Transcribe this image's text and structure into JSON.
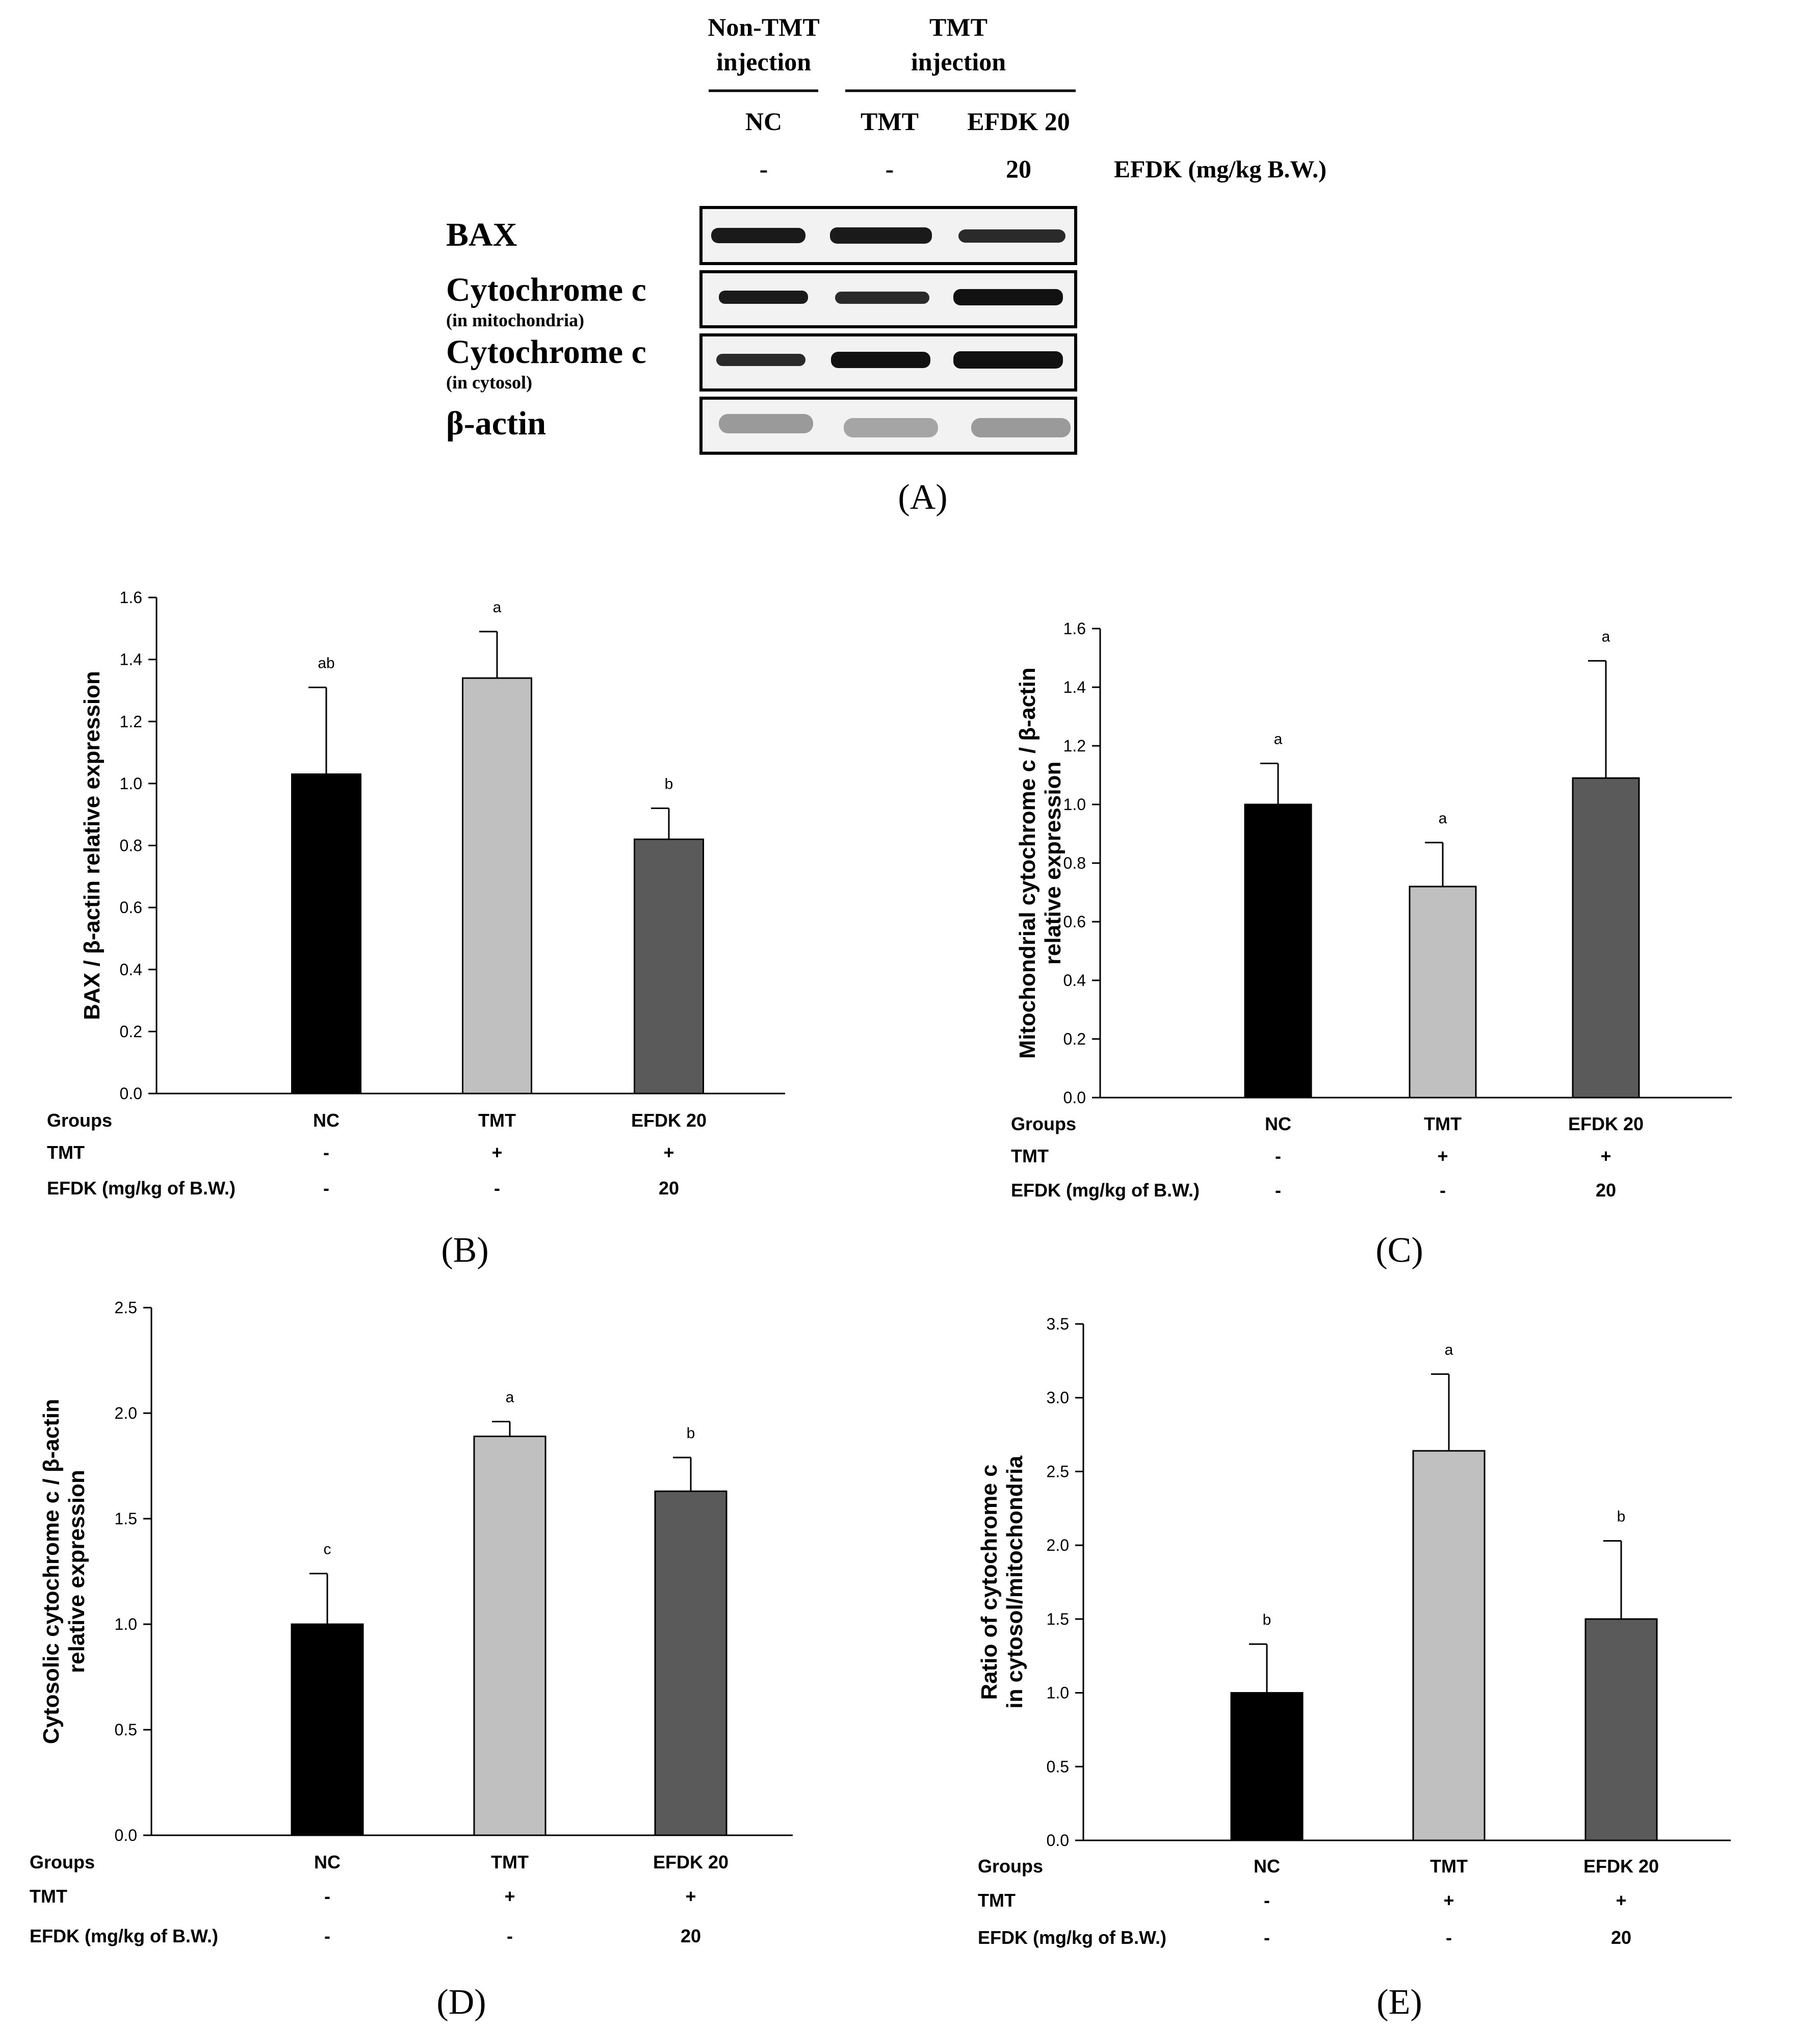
{
  "colors": {
    "nc": "#000000",
    "tmt": "#c0c0c0",
    "efdk": "#5a5a5a",
    "axis": "#000000",
    "blot_bg": "#f2f2f2"
  },
  "western_blot": {
    "panel_label": "(A)",
    "header_groups": [
      {
        "line1": "Non-TMT",
        "line2": "injection"
      },
      {
        "line1": "TMT",
        "line2": "injection"
      }
    ],
    "lanes": [
      "NC",
      "TMT",
      "EFDK 20"
    ],
    "dose_values": [
      "-",
      "-",
      "20"
    ],
    "dose_label": "EFDK (mg/kg B.W.)",
    "rows": [
      {
        "name": "BAX",
        "sub": ""
      },
      {
        "name": "Cytochrome c",
        "sub": "(in mitochondria)"
      },
      {
        "name": "Cytochrome c",
        "sub": "(in cytosol)"
      },
      {
        "name": "β-actin",
        "sub": ""
      }
    ]
  },
  "table_labels": {
    "row_titles": [
      "Groups",
      "TMT",
      "EFDK (mg/kg of B.W.)"
    ],
    "groups": [
      "NC",
      "TMT",
      "EFDK 20"
    ],
    "tmt": [
      "-",
      "+",
      "+"
    ],
    "efdk": [
      "-",
      "-",
      "20"
    ]
  },
  "chart_data": [
    {
      "id": "B",
      "panel_label": "(B)",
      "type": "bar",
      "categories": [
        "NC",
        "TMT",
        "EFDK 20"
      ],
      "values": [
        1.03,
        1.34,
        0.82
      ],
      "errors": [
        0.28,
        0.15,
        0.1
      ],
      "letters": [
        "ab",
        "a",
        "b"
      ],
      "ylabel": [
        "BAX / β-actin relative expression"
      ],
      "ylim": [
        0,
        1.6
      ],
      "ticks": [
        "0.0",
        "0.2",
        "0.4",
        "0.6",
        "0.8",
        "1.0",
        "1.2",
        "1.4",
        "1.6"
      ]
    },
    {
      "id": "C",
      "panel_label": "(C)",
      "type": "bar",
      "categories": [
        "NC",
        "TMT",
        "EFDK 20"
      ],
      "values": [
        1.0,
        0.72,
        1.09
      ],
      "errors": [
        0.14,
        0.15,
        0.4
      ],
      "letters": [
        "a",
        "a",
        "a"
      ],
      "ylabel": [
        "Mitochondrial cytochrome c / β-actin",
        "relative expression"
      ],
      "ylim": [
        0,
        1.6
      ],
      "ticks": [
        "0.0",
        "0.2",
        "0.4",
        "0.6",
        "0.8",
        "1.0",
        "1.2",
        "1.4",
        "1.6"
      ]
    },
    {
      "id": "D",
      "panel_label": "(D)",
      "type": "bar",
      "categories": [
        "NC",
        "TMT",
        "EFDK 20"
      ],
      "values": [
        1.0,
        1.89,
        1.63
      ],
      "errors": [
        0.24,
        0.07,
        0.16
      ],
      "letters": [
        "c",
        "a",
        "b"
      ],
      "ylabel": [
        "Cytosolic cytochrome c / β-actin",
        "relative expression"
      ],
      "ylim": [
        0,
        2.5
      ],
      "ticks": [
        "0.0",
        "0.5",
        "1.0",
        "1.5",
        "2.0",
        "2.5"
      ]
    },
    {
      "id": "E",
      "panel_label": "(E)",
      "type": "bar",
      "categories": [
        "NC",
        "TMT",
        "EFDK 20"
      ],
      "values": [
        1.0,
        2.64,
        1.5
      ],
      "errors": [
        0.33,
        0.52,
        0.53
      ],
      "letters": [
        "b",
        "a",
        "b"
      ],
      "ylabel": [
        "Ratio of cytochrome c",
        "in cytosol/mitochondria"
      ],
      "ylim": [
        0,
        3.5
      ],
      "ticks": [
        "0.0",
        "0.5",
        "1.0",
        "1.5",
        "2.0",
        "2.5",
        "3.0",
        "3.5"
      ]
    }
  ]
}
